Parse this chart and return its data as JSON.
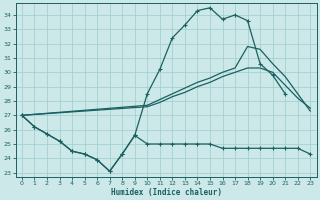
{
  "title": "",
  "xlabel": "Humidex (Indice chaleur)",
  "ylabel": "",
  "background_color": "#cce8e8",
  "grid_color": "#9ecece",
  "line_color": "#1a6060",
  "xlim": [
    -0.5,
    23.5
  ],
  "ylim": [
    22.7,
    34.8
  ],
  "yticks": [
    23,
    24,
    25,
    26,
    27,
    28,
    29,
    30,
    31,
    32,
    33,
    34
  ],
  "xticks": [
    0,
    1,
    2,
    3,
    4,
    5,
    6,
    7,
    8,
    9,
    10,
    11,
    12,
    13,
    14,
    15,
    16,
    17,
    18,
    19,
    20,
    21,
    22,
    23
  ],
  "line_upper_x": [
    0,
    1,
    2,
    3,
    4,
    5,
    6,
    7,
    8,
    9,
    10,
    11,
    12,
    13,
    14,
    15,
    16,
    17,
    18,
    19,
    20,
    21
  ],
  "line_upper_y": [
    27.0,
    26.2,
    25.7,
    25.2,
    24.5,
    24.3,
    23.9,
    23.1,
    24.3,
    25.6,
    28.5,
    30.2,
    32.4,
    33.3,
    34.3,
    34.5,
    33.7,
    34.0,
    33.6,
    30.6,
    29.8,
    28.5
  ],
  "line_lower_x": [
    0,
    1,
    2,
    3,
    4,
    5,
    6,
    7,
    8,
    9,
    10,
    11,
    12,
    13,
    14,
    15,
    16,
    17,
    18,
    19,
    20,
    21,
    22,
    23
  ],
  "line_lower_y": [
    27.0,
    26.2,
    25.7,
    25.2,
    24.5,
    24.3,
    23.9,
    23.1,
    24.3,
    25.6,
    25.0,
    25.0,
    25.0,
    25.0,
    25.0,
    25.0,
    24.7,
    24.7,
    24.7,
    24.7,
    24.7,
    24.7,
    24.7,
    24.3
  ],
  "line_diag1_x": [
    0,
    10,
    11,
    12,
    13,
    14,
    15,
    16,
    17,
    18,
    19,
    20,
    21,
    22,
    23
  ],
  "line_diag1_y": [
    27.0,
    27.6,
    27.9,
    28.3,
    28.6,
    29.0,
    29.3,
    29.7,
    30.0,
    30.3,
    30.3,
    30.0,
    29.1,
    28.2,
    27.5
  ],
  "line_diag2_x": [
    0,
    10,
    11,
    12,
    13,
    14,
    15,
    16,
    17,
    18,
    19,
    20,
    21,
    22,
    23
  ],
  "line_diag2_y": [
    27.0,
    27.7,
    28.1,
    28.5,
    28.9,
    29.3,
    29.6,
    30.0,
    30.3,
    31.8,
    31.6,
    30.6,
    29.7,
    28.5,
    27.3
  ]
}
